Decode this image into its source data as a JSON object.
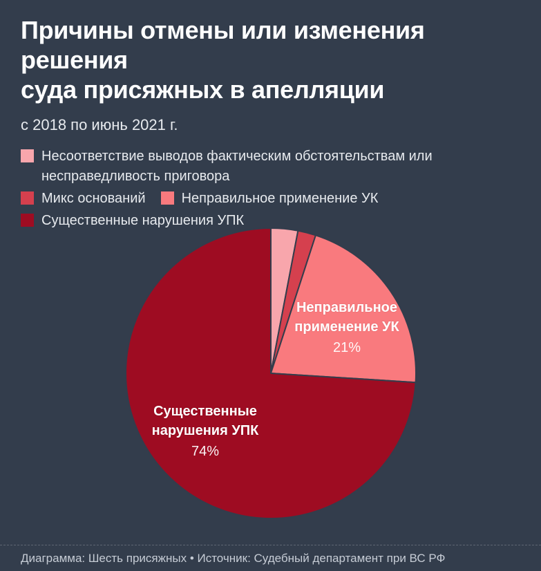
{
  "header": {
    "title": "Причины отмены или изменения решения\nсуда присяжных в апелляции",
    "subtitle": "с 2018 по июнь 2021 г."
  },
  "legend": {
    "items": [
      {
        "label": "Несоответствие выводов фактическим обстоятельствам или\nнесправедливость приговора",
        "color": "#F8A6AC"
      },
      {
        "label": "Микс оснований",
        "color": "#D5404E"
      },
      {
        "label": "Неправильное применение УК",
        "color": "#F97A7E"
      },
      {
        "label": "Существенные нарушения УПК",
        "color": "#9E0C22"
      }
    ]
  },
  "chart_data": {
    "type": "pie",
    "title": "Причины отмены или изменения решения суда присяжных в апелляции",
    "subtitle": "с 2018 по июнь 2021 г.",
    "units": "%",
    "start_angle_deg": 0,
    "direction": "clockwise",
    "legend_position": "top-left",
    "slices": [
      {
        "label": "Несоответствие выводов фактическим обстоятельствам или несправедливость приговора",
        "value": 3,
        "color": "#F8A6AC",
        "callout": null
      },
      {
        "label": "Микс оснований",
        "value": 2,
        "color": "#D5404E",
        "callout": null
      },
      {
        "label": "Неправильное применение УК",
        "value": 21,
        "color": "#F97A7E",
        "callout": {
          "text": "Неправильное\nприменение УК",
          "pct": "21%"
        }
      },
      {
        "label": "Существенные нарушения УПК",
        "value": 74,
        "color": "#9E0C22",
        "callout": {
          "text": "Существенные\nнарушения УПК",
          "pct": "74%"
        }
      }
    ]
  },
  "footer": {
    "text": "Диаграмма: Шесть присяжных • Источник: Судебный департамент при ВС РФ"
  },
  "colors": {
    "background": "#333D4C",
    "title_text": "#FFFFFF",
    "body_text": "#E7EAEE",
    "footer_text": "#C6CCD5"
  }
}
